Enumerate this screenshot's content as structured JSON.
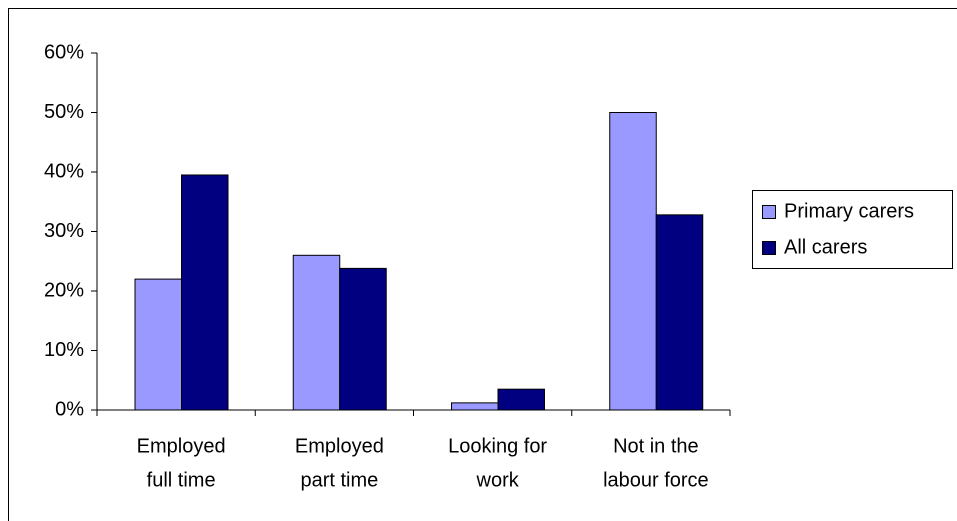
{
  "chart_data": {
    "type": "bar",
    "categories": [
      [
        "Employed",
        "full time"
      ],
      [
        "Employed",
        "part time"
      ],
      [
        "Looking for",
        "work"
      ],
      [
        "Not in the",
        "labour force"
      ]
    ],
    "series": [
      {
        "name": "Primary carers",
        "color": "#9999ff",
        "values": [
          22,
          26,
          1.2,
          50
        ]
      },
      {
        "name": "All carers",
        "color": "#000080",
        "values": [
          39.5,
          23.8,
          3.5,
          32.8
        ]
      }
    ],
    "ylim": [
      0,
      60
    ],
    "yticks": [
      {
        "value": 0,
        "label": "0%"
      },
      {
        "value": 10,
        "label": "10%"
      },
      {
        "value": 20,
        "label": "20%"
      },
      {
        "value": 30,
        "label": "30%"
      },
      {
        "value": 40,
        "label": "40%"
      },
      {
        "value": 50,
        "label": "50%"
      },
      {
        "value": 60,
        "label": "60%"
      }
    ],
    "legend": "right"
  }
}
